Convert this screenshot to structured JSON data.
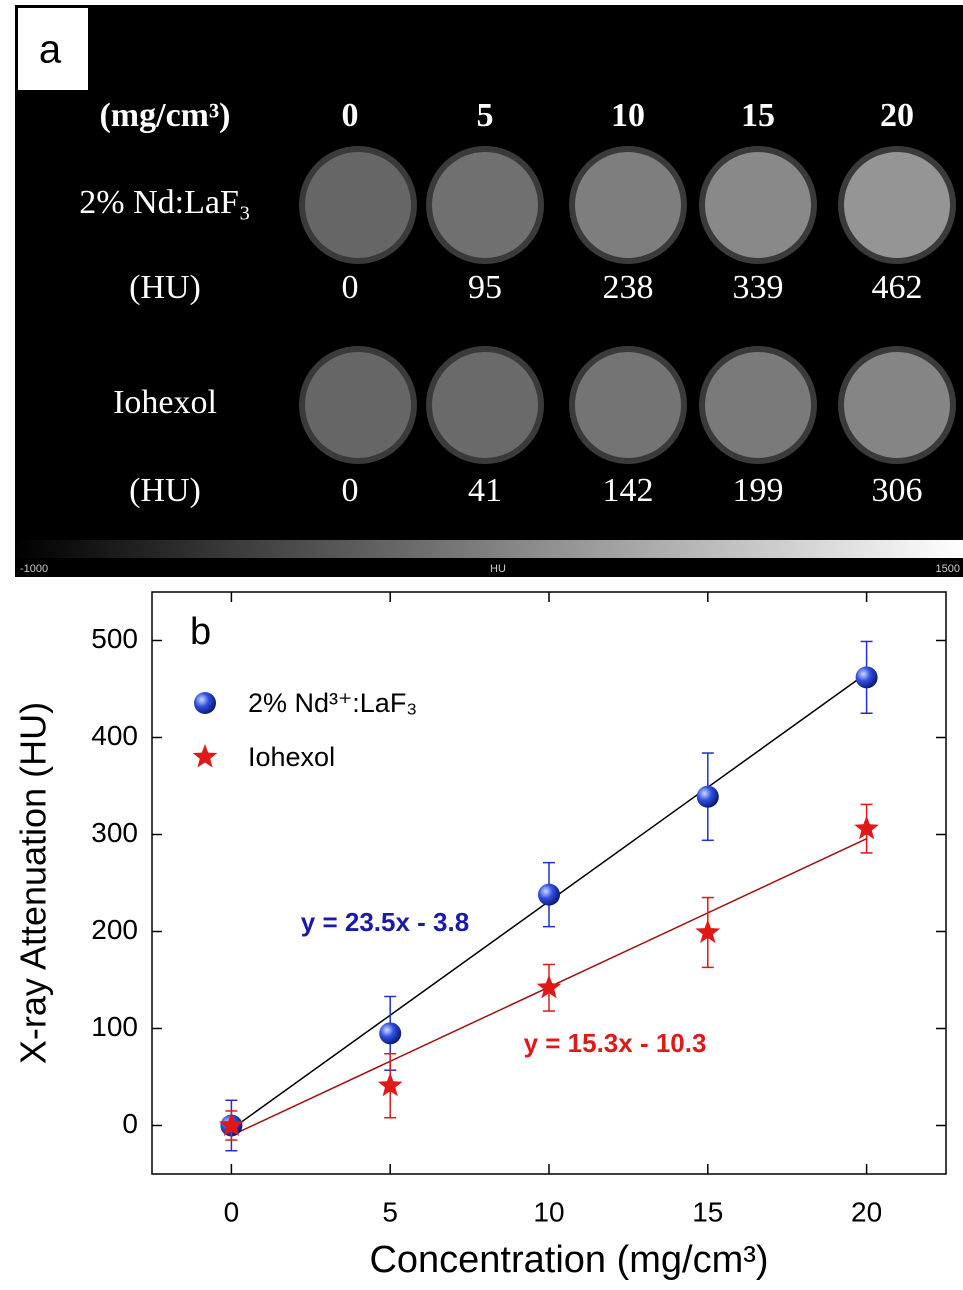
{
  "panel_a": {
    "label": "a",
    "header": "(mg/cm³)",
    "concentrations": [
      0,
      5,
      10,
      15,
      20
    ],
    "rows": [
      {
        "name": "2% Nd:LaF₃",
        "unit": "(HU)",
        "values": [
          0,
          95,
          238,
          339,
          462
        ]
      },
      {
        "name": "Iohexol",
        "unit": "(HU)",
        "values": [
          0,
          41,
          142,
          199,
          306
        ]
      }
    ],
    "colorbar": {
      "min": -1000,
      "label": "HU",
      "max": 1500
    }
  },
  "chart_data": {
    "type": "scatter",
    "panel_label": "b",
    "x_label": "Concentration (mg/cm³)",
    "y_label": "X-ray Attenuation (HU)",
    "x": [
      0,
      5,
      10,
      15,
      20
    ],
    "series": [
      {
        "name": "2% Nd³⁺:LaF₃",
        "color": "#1f2fd0",
        "marker": "circle",
        "values": [
          0,
          95,
          238,
          339,
          462
        ],
        "errors": [
          26,
          38,
          33,
          45,
          37
        ]
      },
      {
        "name": "Iohexol",
        "color": "#e01818",
        "marker": "star",
        "values": [
          0,
          41,
          142,
          199,
          306
        ],
        "errors": [
          15,
          33,
          24,
          36,
          25
        ]
      }
    ],
    "fits": [
      {
        "label": "y = 23.5x - 3.8",
        "slope": 23.5,
        "intercept": -3.8,
        "color": "#1a1aa8",
        "line_color": "#000000"
      },
      {
        "label": "y = 15.3x - 10.3",
        "slope": 15.3,
        "intercept": -10.3,
        "color": "#e01818",
        "line_color": "#a01010"
      }
    ],
    "xlim": [
      -2.5,
      22.5
    ],
    "ylim": [
      -50,
      550
    ],
    "xticks": [
      0,
      5,
      10,
      15,
      20
    ],
    "yticks": [
      0,
      100,
      200,
      300,
      400,
      500
    ],
    "legend": "upper left",
    "grid": false
  }
}
